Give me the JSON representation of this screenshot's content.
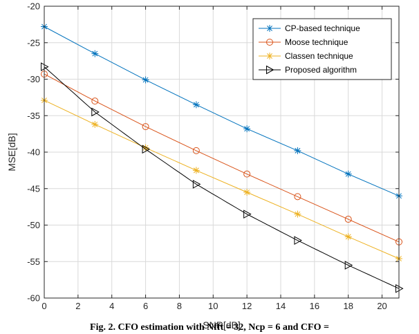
{
  "chart_data": {
    "type": "line",
    "xlabel": "SNR[dB]",
    "ylabel": "MSE[dB]",
    "xlim": [
      0,
      21
    ],
    "ylim": [
      -60,
      -20
    ],
    "xticks": [
      0,
      2,
      4,
      6,
      8,
      10,
      12,
      14,
      16,
      18,
      20
    ],
    "yticks": [
      -60,
      -55,
      -50,
      -45,
      -40,
      -35,
      -30,
      -25,
      -20
    ],
    "grid": true,
    "legend_position": "top-right",
    "x": [
      0,
      3,
      6,
      9,
      12,
      15,
      18,
      21
    ],
    "series": [
      {
        "name": "CP-based technique",
        "marker": "asterisk",
        "color": "#0072BD",
        "values": [
          -22.8,
          -26.5,
          -30.1,
          -33.5,
          -36.8,
          -39.8,
          -43.0,
          -46.0
        ]
      },
      {
        "name": "Moose technique",
        "marker": "circle",
        "color": "#D95319",
        "values": [
          -29.3,
          -33.0,
          -36.5,
          -39.8,
          -43.0,
          -46.1,
          -49.2,
          -52.3
        ]
      },
      {
        "name": "Classen technique",
        "marker": "asterisk",
        "color": "#EDB120",
        "values": [
          -32.9,
          -36.2,
          -39.4,
          -42.5,
          -45.5,
          -48.5,
          -51.6,
          -54.6
        ]
      },
      {
        "name": "Proposed algorithm",
        "marker": "triangle-right",
        "color": "#000000",
        "values": [
          -28.3,
          -34.5,
          -39.6,
          -44.4,
          -48.5,
          -52.1,
          -55.5,
          -58.7
        ]
      }
    ]
  },
  "caption": "Fig. 2. CFO estimation with Nfft = 32, Ncp = 6 and CFO ="
}
